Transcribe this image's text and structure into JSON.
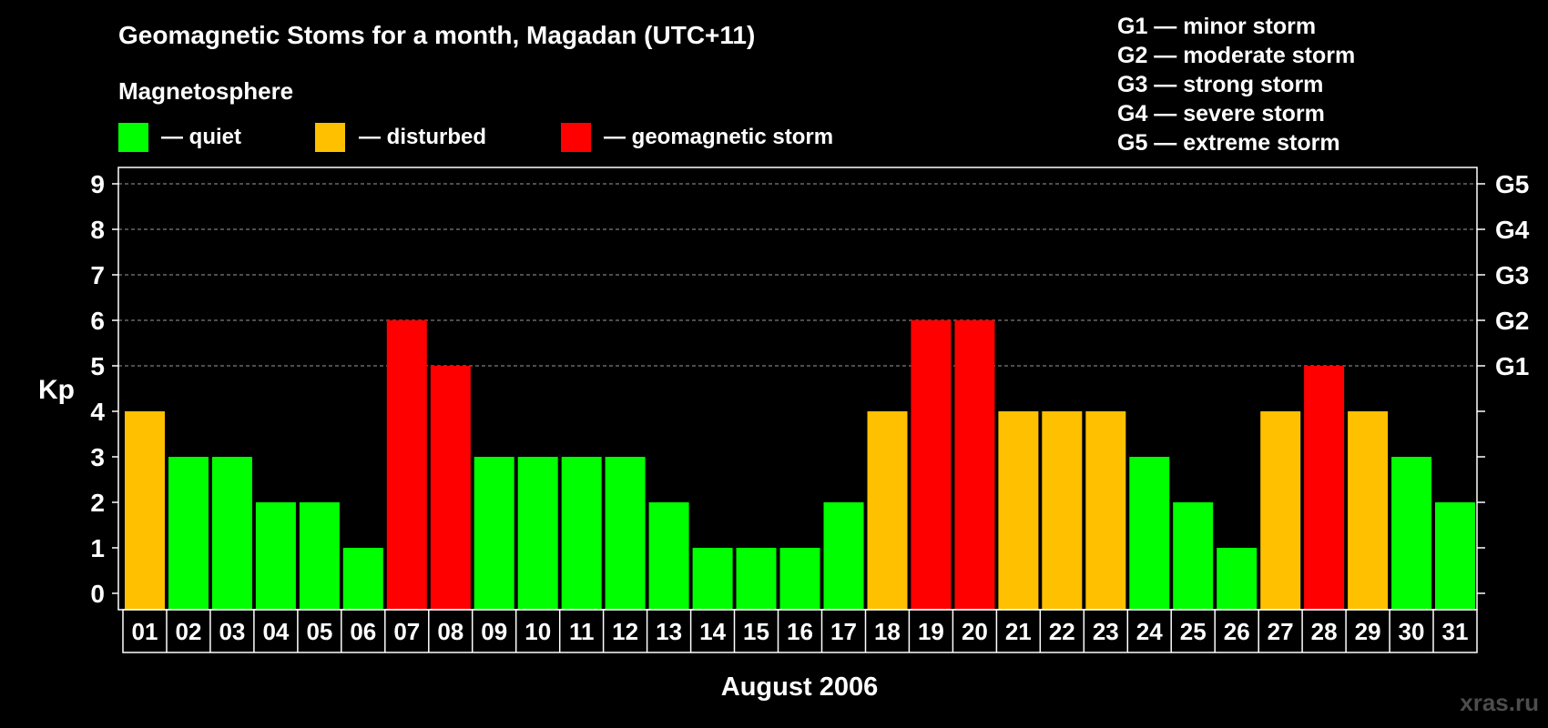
{
  "title": "Geomagnetic Stoms for a month, Magadan (UTC+11)",
  "legend": {
    "heading": "Magnetosphere",
    "items": [
      {
        "key": "quiet",
        "label": "— quiet",
        "color": "#00ff00"
      },
      {
        "key": "disturbed",
        "label": "— disturbed",
        "color": "#ffc000"
      },
      {
        "key": "storm",
        "label": "— geomagnetic storm",
        "color": "#ff0000"
      }
    ]
  },
  "storm_scale": [
    "G1 — minor storm",
    "G2 — moderate storm",
    "G3 — strong storm",
    "G4 — severe storm",
    "G5 — extreme storm"
  ],
  "watermark": "xras.ru",
  "chart_data": {
    "type": "bar",
    "xlabel": "August 2006",
    "ylabel": "Kp",
    "ylim": [
      0,
      9
    ],
    "yticks": [
      0,
      1,
      2,
      3,
      4,
      5,
      6,
      7,
      8,
      9
    ],
    "right_axis_labels": [
      {
        "value": 5,
        "label": "G1"
      },
      {
        "value": 6,
        "label": "G2"
      },
      {
        "value": 7,
        "label": "G3"
      },
      {
        "value": 8,
        "label": "G4"
      },
      {
        "value": 9,
        "label": "G5"
      }
    ],
    "grid": "dashed horizontal at 5-9",
    "categories": [
      "01",
      "02",
      "03",
      "04",
      "05",
      "06",
      "07",
      "08",
      "09",
      "10",
      "11",
      "12",
      "13",
      "14",
      "15",
      "16",
      "17",
      "18",
      "19",
      "20",
      "21",
      "22",
      "23",
      "24",
      "25",
      "26",
      "27",
      "28",
      "29",
      "30",
      "31"
    ],
    "values": [
      4,
      3,
      3,
      2,
      2,
      1,
      6,
      5,
      3,
      3,
      3,
      3,
      2,
      1,
      1,
      1,
      2,
      4,
      6,
      6,
      4,
      4,
      4,
      3,
      2,
      1,
      4,
      5,
      4,
      3,
      2
    ],
    "level": [
      "disturbed",
      "quiet",
      "quiet",
      "quiet",
      "quiet",
      "quiet",
      "storm",
      "storm",
      "quiet",
      "quiet",
      "quiet",
      "quiet",
      "quiet",
      "quiet",
      "quiet",
      "quiet",
      "quiet",
      "disturbed",
      "storm",
      "storm",
      "disturbed",
      "disturbed",
      "disturbed",
      "quiet",
      "quiet",
      "quiet",
      "disturbed",
      "storm",
      "disturbed",
      "quiet",
      "quiet"
    ]
  }
}
